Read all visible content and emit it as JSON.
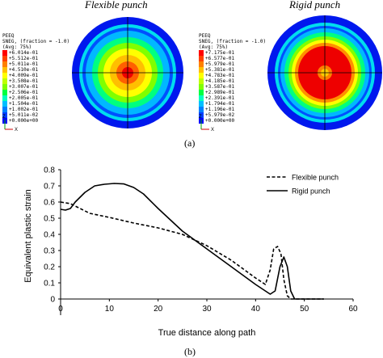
{
  "panel_a": {
    "left_title": "Flexible punch",
    "right_title": "Rigid punch",
    "caption": "(a)",
    "left_legend": {
      "header": [
        "PEEQ",
        "SNEG, (fraction = -1.0)",
        "(Avg: 75%)"
      ],
      "entries": [
        "+6.014e-01",
        "+5.512e-01",
        "+5.011e-01",
        "+4.510e-01",
        "+4.009e-01",
        "+3.508e-01",
        "+3.007e-01",
        "+2.506e-01",
        "+2.005e-01",
        "+1.504e-01",
        "+1.002e-01",
        "+5.011e-02",
        "+0.000e+00"
      ]
    },
    "right_legend": {
      "header": [
        "PEEQ",
        "SNEG, (fraction = -1.0)",
        "(Avg: 75%)"
      ],
      "entries": [
        "+7.175e-01",
        "+6.577e-01",
        "+5.979e-01",
        "+5.381e-01",
        "+4.783e-01",
        "+4.185e-01",
        "+3.587e-01",
        "+2.989e-01",
        "+2.391e-01",
        "+1.794e-01",
        "+1.196e-01",
        "+5.979e-02",
        "+0.000e+00"
      ]
    },
    "legend_colors": [
      "#ff0000",
      "#ff4000",
      "#ff8000",
      "#ffbf00",
      "#ffff00",
      "#bfff00",
      "#80ff00",
      "#00ff40",
      "#00ffbf",
      "#00bfff",
      "#0080ff",
      "#0040ff",
      "#0000ff"
    ],
    "axis_triad": {
      "z": "Z",
      "x": "X"
    }
  },
  "chart_data": {
    "type": "line",
    "xlabel": "True distance along path",
    "ylabel": "Equivalent plastic strain",
    "xlim": [
      0,
      60
    ],
    "ylim": [
      -0.1,
      0.8
    ],
    "xticks": [
      0,
      10,
      20,
      30,
      40,
      50,
      60
    ],
    "yticks": [
      0,
      0.1,
      0.2,
      0.3,
      0.4,
      0.5,
      0.6,
      0.7,
      0.8
    ],
    "grid": false,
    "legend_position": "top-right",
    "series": [
      {
        "name": "Flexible punch",
        "style": "dashed",
        "x": [
          0,
          2,
          4,
          6,
          10,
          15,
          20,
          25,
          30,
          35,
          40,
          42,
          43,
          43.7,
          44.5,
          45.2,
          45.8,
          46.5,
          47.2,
          54
        ],
        "y": [
          0.6,
          0.59,
          0.56,
          0.53,
          0.505,
          0.47,
          0.44,
          0.4,
          0.33,
          0.24,
          0.13,
          0.09,
          0.18,
          0.31,
          0.325,
          0.28,
          0.12,
          0.02,
          0,
          0
        ]
      },
      {
        "name": "Rigid punch",
        "style": "solid",
        "x": [
          0,
          1,
          2,
          3,
          5,
          7,
          9,
          11,
          13,
          15,
          17,
          20,
          25,
          30,
          35,
          40,
          43,
          44,
          45,
          45.8,
          46.5,
          47.2,
          48,
          54
        ],
        "y": [
          0.555,
          0.55,
          0.56,
          0.6,
          0.66,
          0.7,
          0.71,
          0.715,
          0.712,
          0.69,
          0.65,
          0.56,
          0.42,
          0.31,
          0.2,
          0.09,
          0.03,
          0.05,
          0.2,
          0.26,
          0.2,
          0.05,
          0,
          0
        ]
      }
    ],
    "caption": "(b)"
  }
}
